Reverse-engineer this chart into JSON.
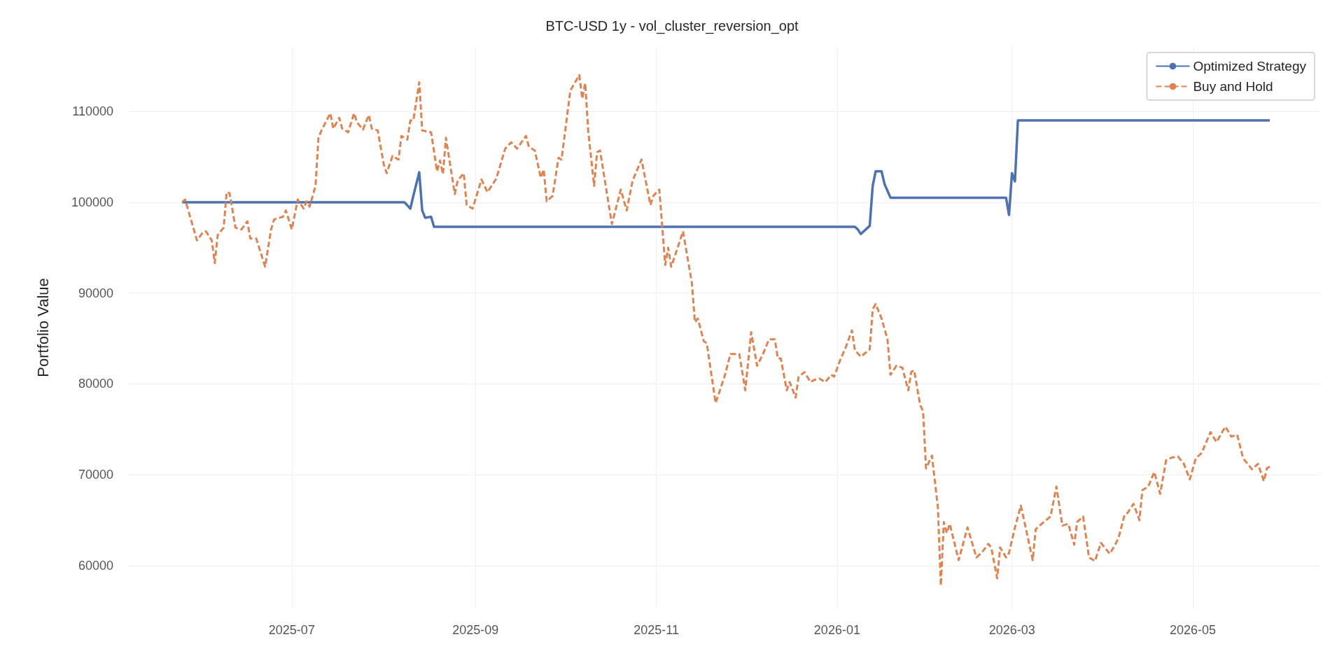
{
  "chart_data": {
    "type": "line",
    "title": "BTC-USD 1y - vol_cluster_reversion_opt",
    "ylabel": "Portfolio Value",
    "xlim": [
      "2025-05-07",
      "2026-06-13"
    ],
    "xticks": [
      "2025-07",
      "2025-09",
      "2025-11",
      "2026-01",
      "2026-03",
      "2026-05"
    ],
    "ylim": [
      55300,
      117100
    ],
    "yticks": [
      60000,
      70000,
      80000,
      90000,
      100000,
      110000
    ],
    "grid": true,
    "legend": "top right",
    "marker": "none",
    "series": [
      {
        "name": "Optimized Strategy",
        "color": "#4c72b0",
        "line_style": "solid",
        "x": [
          "2025-05-25",
          "2025-08-08",
          "2025-08-10",
          "2025-08-11",
          "2025-08-13",
          "2025-08-14",
          "2025-08-15",
          "2025-08-17",
          "2025-08-18",
          "2026-01-07",
          "2026-01-08",
          "2026-01-09",
          "2026-01-12",
          "2026-01-13",
          "2026-01-14",
          "2026-01-16",
          "2026-01-17",
          "2026-01-19",
          "2026-02-27",
          "2026-02-28",
          "2026-03-01",
          "2026-03-02",
          "2026-03-03",
          "2026-05-27"
        ],
        "values": [
          100000,
          100000,
          99300,
          100700,
          103300,
          99100,
          98300,
          98400,
          97300,
          97300,
          97000,
          96500,
          97400,
          101800,
          103400,
          103400,
          102000,
          100500,
          100500,
          98600,
          103200,
          102300,
          109000,
          109000
        ]
      },
      {
        "name": "Buy and Hold",
        "color": "#dd8452",
        "line_style": "dashed",
        "x": [
          "2025-05-25",
          "2025-05-26",
          "2025-05-30",
          "2025-06-01",
          "2025-06-02",
          "2025-06-04",
          "2025-06-05",
          "2025-06-06",
          "2025-06-08",
          "2025-06-09",
          "2025-06-10",
          "2025-06-12",
          "2025-06-14",
          "2025-06-16",
          "2025-06-17",
          "2025-06-19",
          "2025-06-22",
          "2025-06-24",
          "2025-06-25",
          "2025-06-28",
          "2025-06-29",
          "2025-07-01",
          "2025-07-03",
          "2025-07-05",
          "2025-07-06",
          "2025-07-07",
          "2025-07-09",
          "2025-07-10",
          "2025-07-11",
          "2025-07-14",
          "2025-07-15",
          "2025-07-17",
          "2025-07-18",
          "2025-07-20",
          "2025-07-22",
          "2025-07-23",
          "2025-07-25",
          "2025-07-27",
          "2025-07-28",
          "2025-07-30",
          "2025-08-01",
          "2025-08-02",
          "2025-08-04",
          "2025-08-06",
          "2025-08-07",
          "2025-08-09",
          "2025-08-10",
          "2025-08-11",
          "2025-08-13",
          "2025-08-14",
          "2025-08-17",
          "2025-08-19",
          "2025-08-20",
          "2025-08-21",
          "2025-08-22",
          "2025-08-25",
          "2025-08-26",
          "2025-08-28",
          "2025-08-29",
          "2025-08-31",
          "2025-09-03",
          "2025-09-05",
          "2025-09-08",
          "2025-09-11",
          "2025-09-13",
          "2025-09-15",
          "2025-09-18",
          "2025-09-19",
          "2025-09-21",
          "2025-09-23",
          "2025-09-24",
          "2025-09-25",
          "2025-09-27",
          "2025-09-29",
          "2025-09-30",
          "2025-10-03",
          "2025-10-06",
          "2025-10-07",
          "2025-10-08",
          "2025-10-09",
          "2025-10-11",
          "2025-10-12",
          "2025-10-13",
          "2025-10-17",
          "2025-10-20",
          "2025-10-22",
          "2025-10-24",
          "2025-10-27",
          "2025-10-30",
          "2025-10-31",
          "2025-11-02",
          "2025-11-04",
          "2025-11-05",
          "2025-11-06",
          "2025-11-08",
          "2025-11-10",
          "2025-11-13",
          "2025-11-14",
          "2025-11-15",
          "2025-11-17",
          "2025-11-18",
          "2025-11-21",
          "2025-11-24",
          "2025-11-26",
          "2025-11-29",
          "2025-12-01",
          "2025-12-03",
          "2025-12-05",
          "2025-12-07",
          "2025-12-09",
          "2025-12-11",
          "2025-12-12",
          "2025-12-13",
          "2025-12-15",
          "2025-12-16",
          "2025-12-18",
          "2025-12-19",
          "2025-12-21",
          "2025-12-23",
          "2025-12-24",
          "2025-12-26",
          "2025-12-28",
          "2025-12-30",
          "2025-12-31",
          "2026-01-02",
          "2026-01-04",
          "2026-01-06",
          "2026-01-07",
          "2026-01-09",
          "2026-01-12",
          "2026-01-13",
          "2026-01-14",
          "2026-01-16",
          "2026-01-18",
          "2026-01-19",
          "2026-01-21",
          "2026-01-23",
          "2026-01-25",
          "2026-01-26",
          "2026-01-27",
          "2026-01-29",
          "2026-01-30",
          "2026-01-31",
          "2026-02-02",
          "2026-02-04",
          "2026-02-05",
          "2026-02-06",
          "2026-02-07",
          "2026-02-08",
          "2026-02-11",
          "2026-02-14",
          "2026-02-17",
          "2026-02-19",
          "2026-02-21",
          "2026-02-22",
          "2026-02-24",
          "2026-02-25",
          "2026-02-27",
          "2026-02-28",
          "2026-03-02",
          "2026-03-04",
          "2026-03-08",
          "2026-03-09",
          "2026-03-11",
          "2026-03-14",
          "2026-03-16",
          "2026-03-18",
          "2026-03-20",
          "2026-03-22",
          "2026-03-23",
          "2026-03-25",
          "2026-03-27",
          "2026-03-29",
          "2026-03-31",
          "2026-04-03",
          "2026-04-05",
          "2026-04-06",
          "2026-04-08",
          "2026-04-09",
          "2026-04-11",
          "2026-04-13",
          "2026-04-14",
          "2026-04-16",
          "2026-04-18",
          "2026-04-20",
          "2026-04-22",
          "2026-04-24",
          "2026-04-26",
          "2026-04-28",
          "2026-04-30",
          "2026-05-02",
          "2026-05-04",
          "2026-05-07",
          "2026-05-09",
          "2026-05-12",
          "2026-05-14",
          "2026-05-16",
          "2026-05-18",
          "2026-05-21",
          "2026-05-23",
          "2026-05-25",
          "2026-05-26",
          "2026-05-27"
        ],
        "values": [
          100000,
          100300,
          95800,
          96700,
          96800,
          95800,
          93300,
          96400,
          97200,
          101100,
          101000,
          97200,
          97000,
          97900,
          96000,
          96000,
          92900,
          97000,
          98100,
          98400,
          99100,
          97000,
          100300,
          99300,
          100100,
          99500,
          101800,
          107100,
          107900,
          109800,
          108100,
          109300,
          108100,
          107700,
          109800,
          108800,
          108000,
          109600,
          108100,
          107900,
          104200,
          103200,
          105100,
          104700,
          107300,
          106900,
          109000,
          109000,
          113200,
          107900,
          107700,
          103400,
          104600,
          103100,
          107100,
          100900,
          102400,
          103200,
          99700,
          99300,
          102500,
          101100,
          102600,
          105900,
          106600,
          105900,
          107300,
          106100,
          105700,
          102700,
          103600,
          100100,
          100700,
          104900,
          104700,
          112300,
          114000,
          111400,
          113100,
          107900,
          101800,
          105500,
          105700,
          97600,
          101400,
          99100,
          102400,
          104700,
          99700,
          100700,
          101400,
          93100,
          95000,
          92900,
          94800,
          96800,
          91100,
          86800,
          87200,
          84700,
          84500,
          77900,
          80800,
          83300,
          83300,
          79300,
          85700,
          82000,
          83300,
          84900,
          84900,
          82800,
          82800,
          79300,
          80200,
          78500,
          80800,
          81300,
          80200,
          80400,
          80600,
          80200,
          81000,
          80800,
          82600,
          84100,
          85900,
          83700,
          83000,
          83800,
          88200,
          88800,
          87200,
          84900,
          81000,
          82000,
          81800,
          79300,
          81300,
          81500,
          77700,
          77000,
          70700,
          72100,
          66400,
          57800,
          64800,
          63600,
          64600,
          60600,
          64200,
          60900,
          61500,
          62400,
          62000,
          58600,
          62000,
          60900,
          61400,
          64200,
          66600,
          60600,
          64000,
          64600,
          65400,
          68700,
          64400,
          64600,
          62300,
          64800,
          65400,
          60900,
          60500,
          62500,
          61300,
          62400,
          63100,
          65600,
          65800,
          66800,
          65000,
          68300,
          68700,
          70300,
          67900,
          71600,
          71900,
          72000,
          71200,
          69500,
          71800,
          72400,
          74700,
          73600,
          75300,
          74200,
          74400,
          71800,
          70600,
          71200,
          69300,
          70700,
          70900
        ]
      }
    ]
  }
}
